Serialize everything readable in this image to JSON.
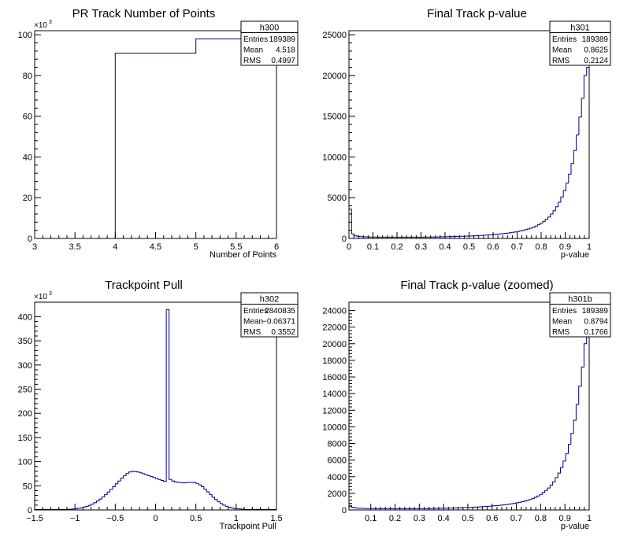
{
  "chart_data": [
    {
      "type": "histogram",
      "title": "PR Track Number of Points",
      "xlabel": "Number of Points",
      "ylabel": "",
      "xlim": [
        3,
        6
      ],
      "ylim": [
        0,
        102000
      ],
      "x_ticks": [
        3,
        3.5,
        4,
        4.5,
        5,
        5.5,
        6
      ],
      "x_tick_labels": [
        "3",
        "3.5",
        "4",
        "4.5",
        "5",
        "5.5",
        "6"
      ],
      "y_ticks": [
        0,
        20000,
        40000,
        60000,
        80000,
        100000
      ],
      "y_tick_labels": [
        "0",
        "20",
        "40",
        "60",
        "80",
        "100"
      ],
      "y_multiplier": "×10",
      "y_multiplier_exp": "3",
      "bin_edges": [
        3,
        4,
        5,
        6
      ],
      "values": [
        0,
        91000,
        98000
      ],
      "stats": {
        "name": "h300",
        "rows": [
          {
            "label": "Entries",
            "value": "189389"
          },
          {
            "label": "Mean",
            "value": "4.518"
          },
          {
            "label": "RMS",
            "value": "0.4997"
          }
        ]
      }
    },
    {
      "type": "histogram",
      "title": "Final Track p-value",
      "xlabel": "p-value",
      "ylabel": "",
      "xlim": [
        0,
        1
      ],
      "ylim": [
        0,
        25500
      ],
      "x_ticks": [
        0,
        0.1,
        0.2,
        0.3,
        0.4,
        0.5,
        0.6,
        0.7,
        0.8,
        0.9,
        1
      ],
      "x_tick_labels": [
        "0",
        "0.1",
        "0.2",
        "0.3",
        "0.4",
        "0.5",
        "0.6",
        "0.7",
        "0.8",
        "0.9",
        "1"
      ],
      "y_ticks": [
        0,
        5000,
        10000,
        15000,
        20000,
        25000
      ],
      "y_tick_labels": [
        "0",
        "5000",
        "10000",
        "15000",
        "20000",
        "25000"
      ],
      "y_multiplier": "",
      "y_multiplier_exp": "",
      "bin_edges_range": [
        0,
        1
      ],
      "values": [
        3600,
        550,
        330,
        260,
        220,
        200,
        190,
        180,
        175,
        170,
        165,
        160,
        158,
        155,
        152,
        150,
        150,
        150,
        150,
        150,
        150,
        150,
        150,
        150,
        150,
        150,
        152,
        155,
        158,
        160,
        165,
        170,
        175,
        180,
        185,
        190,
        195,
        200,
        210,
        220,
        230,
        240,
        250,
        260,
        270,
        280,
        290,
        300,
        320,
        340,
        360,
        380,
        400,
        420,
        440,
        460,
        490,
        520,
        550,
        580,
        620,
        660,
        700,
        750,
        800,
        860,
        920,
        990,
        1070,
        1160,
        1260,
        1380,
        1520,
        1680,
        1870,
        2090,
        2340,
        2640,
        2990,
        3400,
        3880,
        4440,
        5100,
        5880,
        6800,
        7900,
        9200,
        10800,
        12700,
        14900,
        17200,
        20000,
        21000
      ],
      "stats": {
        "name": "h301",
        "rows": [
          {
            "label": "Entries",
            "value": "189389"
          },
          {
            "label": "Mean",
            "value": "0.8625"
          },
          {
            "label": "RMS",
            "value": "0.2124"
          }
        ]
      }
    },
    {
      "type": "histogram",
      "title": "Trackpoint Pull",
      "xlabel": "Trackpoint Pull",
      "ylabel": "",
      "xlim": [
        -1.5,
        1.5
      ],
      "ylim": [
        0,
        430000
      ],
      "x_ticks": [
        -1.5,
        -1,
        -0.5,
        0,
        0.5,
        1,
        1.5
      ],
      "x_tick_labels": [
        "−1.5",
        "−1",
        "−0.5",
        "0",
        "0.5",
        "1",
        "1.5"
      ],
      "y_ticks": [
        0,
        50000,
        100000,
        150000,
        200000,
        250000,
        300000,
        350000,
        400000
      ],
      "y_tick_labels": [
        "0",
        "50",
        "100",
        "150",
        "200",
        "250",
        "300",
        "350",
        "400"
      ],
      "y_multiplier": "×10",
      "y_multiplier_exp": "3",
      "bin_edges_range": [
        -1.5,
        1.5
      ],
      "values": [
        1000,
        1000,
        1000,
        1000,
        1000,
        1000,
        1000,
        1000,
        1000,
        1000,
        1000,
        1000,
        1000,
        1500,
        2000,
        2500,
        3500,
        4500,
        6000,
        7500,
        9500,
        12000,
        15000,
        18500,
        22500,
        27000,
        32000,
        37000,
        42500,
        48000,
        54000,
        60000,
        66000,
        71000,
        75500,
        78500,
        80000,
        79500,
        78500,
        77000,
        75000,
        73000,
        71000,
        69000,
        67000,
        65000,
        63000,
        61000,
        59000,
        415000,
        63000,
        60000,
        58000,
        57000,
        56500,
        56000,
        56500,
        57000,
        57000,
        56500,
        55000,
        52000,
        48000,
        43000,
        37500,
        32000,
        26500,
        21500,
        17000,
        13000,
        10000,
        7500,
        5500,
        4000,
        3000,
        2500,
        2000,
        1500,
        1000,
        1000,
        1000,
        1000,
        1000,
        1000,
        1000,
        1000,
        1000,
        1000,
        1000,
        1000
      ],
      "stats": {
        "name": "h302",
        "rows": [
          {
            "label": "Entries",
            "value": "2840835"
          },
          {
            "label": "Mean",
            "value": "−0.06371"
          },
          {
            "label": "RMS",
            "value": "0.3552"
          }
        ]
      }
    },
    {
      "type": "histogram",
      "title": "Final Track p-value (zoomed)",
      "xlabel": "p-value",
      "ylabel": "",
      "xlim": [
        0.01,
        1
      ],
      "ylim": [
        0,
        25000
      ],
      "x_ticks": [
        0.1,
        0.2,
        0.3,
        0.4,
        0.5,
        0.6,
        0.7,
        0.8,
        0.9,
        1
      ],
      "x_tick_labels": [
        "0.1",
        "0.2",
        "0.3",
        "0.4",
        "0.5",
        "0.6",
        "0.7",
        "0.8",
        "0.9",
        "1"
      ],
      "y_ticks": [
        0,
        2000,
        4000,
        6000,
        8000,
        10000,
        12000,
        14000,
        16000,
        18000,
        20000,
        22000,
        24000
      ],
      "y_tick_labels": [
        "0",
        "2000",
        "4000",
        "6000",
        "8000",
        "10000",
        "12000",
        "14000",
        "16000",
        "18000",
        "20000",
        "22000",
        "24000"
      ],
      "y_multiplier": "",
      "y_multiplier_exp": "",
      "bin_edges_range": [
        0.01,
        1
      ],
      "values": [
        560,
        330,
        260,
        220,
        200,
        190,
        180,
        175,
        170,
        165,
        160,
        158,
        155,
        152,
        150,
        150,
        150,
        150,
        150,
        150,
        150,
        150,
        150,
        150,
        150,
        152,
        155,
        158,
        160,
        165,
        170,
        175,
        180,
        185,
        190,
        195,
        200,
        210,
        220,
        230,
        240,
        250,
        260,
        270,
        280,
        290,
        300,
        320,
        340,
        360,
        380,
        400,
        420,
        440,
        460,
        490,
        520,
        550,
        580,
        620,
        660,
        700,
        750,
        800,
        860,
        920,
        990,
        1070,
        1160,
        1260,
        1380,
        1520,
        1680,
        1870,
        2090,
        2340,
        2640,
        2990,
        3400,
        3880,
        4440,
        5100,
        5880,
        6800,
        7900,
        9200,
        10800,
        12700,
        14900,
        17200,
        20000,
        21000
      ],
      "stats": {
        "name": "h301b",
        "rows": [
          {
            "label": "Entries",
            "value": "189389"
          },
          {
            "label": "Mean",
            "value": "0.8794"
          },
          {
            "label": "RMS",
            "value": "0.1766"
          }
        ]
      }
    }
  ]
}
